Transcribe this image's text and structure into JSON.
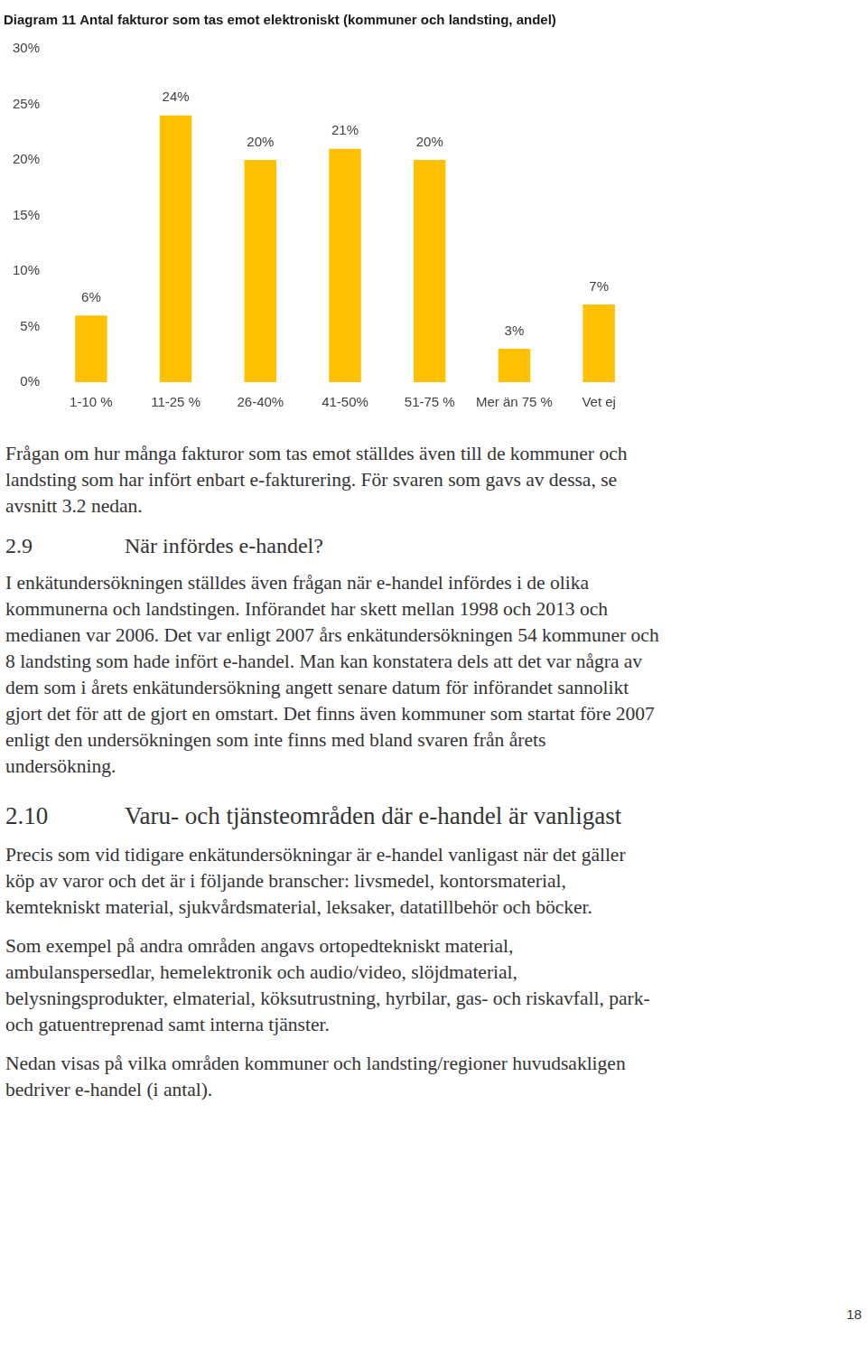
{
  "chart_data": {
    "type": "bar",
    "title": "Diagram 11 Antal fakturor som tas emot elektroniskt (kommuner och landsting, andel)",
    "categories": [
      "1-10 %",
      "11-25 %",
      "26-40%",
      "41-50%",
      "51-75 %",
      "Mer än 75 %",
      "Vet ej"
    ],
    "values": [
      6,
      24,
      20,
      21,
      20,
      3,
      7
    ],
    "value_labels": [
      "6%",
      "24%",
      "20%",
      "21%",
      "20%",
      "3%",
      "7%"
    ],
    "data_labels": true,
    "color": "#FFC000",
    "ylim": [
      0,
      30
    ],
    "yticks": [
      {
        "value": 0,
        "label": "0%"
      },
      {
        "value": 5,
        "label": "5%"
      },
      {
        "value": 10,
        "label": "10%"
      },
      {
        "value": 15,
        "label": "15%"
      },
      {
        "value": 20,
        "label": "20%"
      },
      {
        "value": 25,
        "label": "25%"
      },
      {
        "value": 30,
        "label": "30%"
      }
    ],
    "grid": false
  },
  "document": {
    "paragraphs_1": [
      "Frågan om hur många fakturor som tas emot ställdes även till de kommuner och landsting som har infört enbart e-fakturering. För svaren som gavs av dessa, se avsnitt 3.2 nedan."
    ],
    "section_1": {
      "number": "2.9",
      "title": "När infördes e-handel?"
    },
    "paragraphs_2": [
      "I enkätundersökningen ställdes även frågan när e-handel infördes i de olika kommunerna och landstingen. Införandet har skett mellan 1998 och 2013 och medianen var 2006. Det var enligt 2007 års enkätundersökningen 54 kommuner och 8 landsting som hade infört e-handel. Man kan konstatera dels att det var några av dem som i årets enkätundersökning angett senare datum för införandet sannolikt gjort det för att de gjort en omstart. Det finns även kommuner som startat före 2007 enligt den undersökningen som inte finns med bland svaren från årets undersökning."
    ],
    "section_2": {
      "number": "2.10",
      "title": "Varu- och tjänsteområden där e-handel är vanligast"
    },
    "paragraphs_3": [
      "Precis som vid tidigare enkätundersökningar är e-handel vanligast när det gäller köp av varor och det är i följande branscher: livsmedel, kontorsmaterial, kemtekniskt material, sjukvårdsmaterial, leksaker, datatillbehör och böcker.",
      "Som exempel på andra områden angavs ortopedtekniskt material, ambulanspersedlar, hemelektronik och audio/video, slöjdmaterial, belysningsprodukter, elmaterial, köksutrustning, hyrbilar, gas- och riskavfall, park- och gatuentreprenad samt interna tjänster.",
      "Nedan visas på vilka områden kommuner och landsting/regioner huvudsakligen bedriver e-handel (i antal)."
    ],
    "page_number": "18"
  }
}
